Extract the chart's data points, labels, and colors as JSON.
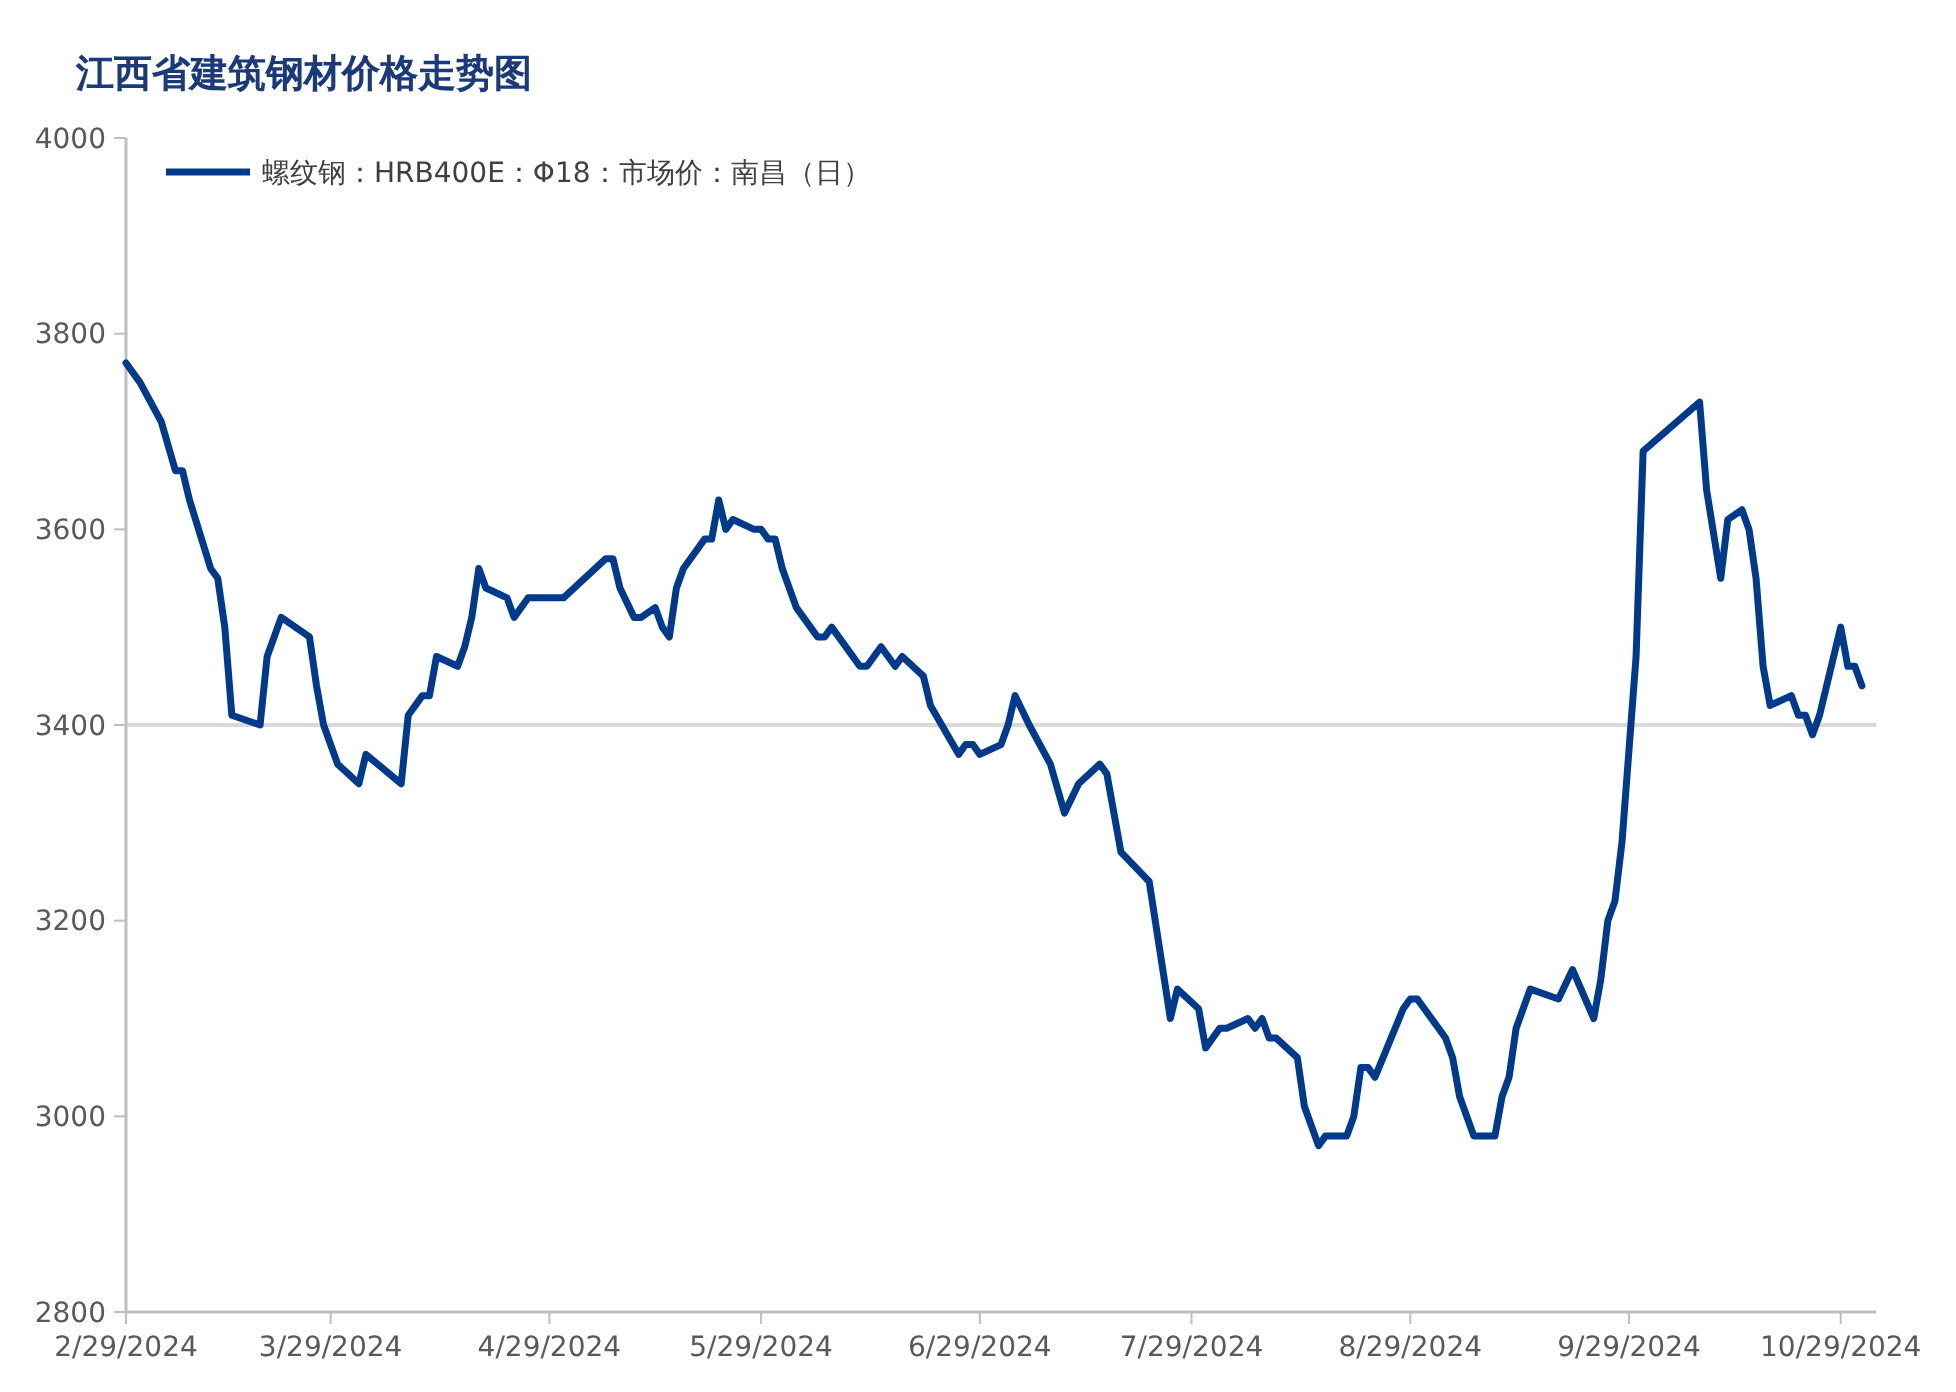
{
  "chart_data": {
    "type": "line",
    "title": "江西省建筑钢材价格走势图",
    "x": [
      "2024-02-29",
      "2024-03-02",
      "2024-03-05",
      "2024-03-07",
      "2024-03-08",
      "2024-03-09",
      "2024-03-12",
      "2024-03-13",
      "2024-03-14",
      "2024-03-15",
      "2024-03-19",
      "2024-03-20",
      "2024-03-22",
      "2024-03-26",
      "2024-03-27",
      "2024-03-28",
      "2024-03-30",
      "2024-04-02",
      "2024-04-03",
      "2024-04-08",
      "2024-04-09",
      "2024-04-11",
      "2024-04-12",
      "2024-04-13",
      "2024-04-16",
      "2024-04-17",
      "2024-04-18",
      "2024-04-19",
      "2024-04-20",
      "2024-04-23",
      "2024-04-24",
      "2024-04-26",
      "2024-05-01",
      "2024-05-07",
      "2024-05-08",
      "2024-05-09",
      "2024-05-11",
      "2024-05-12",
      "2024-05-14",
      "2024-05-15",
      "2024-05-16",
      "2024-05-17",
      "2024-05-18",
      "2024-05-21",
      "2024-05-22",
      "2024-05-23",
      "2024-05-24",
      "2024-05-25",
      "2024-05-28",
      "2024-05-29",
      "2024-05-30",
      "2024-05-31",
      "2024-06-01",
      "2024-06-03",
      "2024-06-05",
      "2024-06-06",
      "2024-06-07",
      "2024-06-08",
      "2024-06-12",
      "2024-06-13",
      "2024-06-15",
      "2024-06-17",
      "2024-06-18",
      "2024-06-21",
      "2024-06-22",
      "2024-06-26",
      "2024-06-27",
      "2024-06-28",
      "2024-06-29",
      "2024-07-02",
      "2024-07-03",
      "2024-07-04",
      "2024-07-06",
      "2024-07-09",
      "2024-07-11",
      "2024-07-13",
      "2024-07-16",
      "2024-07-17",
      "2024-07-19",
      "2024-07-23",
      "2024-07-26",
      "2024-07-27",
      "2024-07-30",
      "2024-07-31",
      "2024-08-02",
      "2024-08-03",
      "2024-08-06",
      "2024-08-07",
      "2024-08-08",
      "2024-08-09",
      "2024-08-10",
      "2024-08-13",
      "2024-08-14",
      "2024-08-16",
      "2024-08-17",
      "2024-08-20",
      "2024-08-21",
      "2024-08-22",
      "2024-08-23",
      "2024-08-24",
      "2024-08-28",
      "2024-08-29",
      "2024-08-30",
      "2024-09-03",
      "2024-09-04",
      "2024-09-05",
      "2024-09-07",
      "2024-09-10",
      "2024-09-11",
      "2024-09-12",
      "2024-09-13",
      "2024-09-15",
      "2024-09-19",
      "2024-09-21",
      "2024-09-24",
      "2024-09-25",
      "2024-09-26",
      "2024-09-27",
      "2024-09-28",
      "2024-09-30",
      "2024-10-01",
      "2024-10-09",
      "2024-10-10",
      "2024-10-12",
      "2024-10-13",
      "2024-10-15",
      "2024-10-16",
      "2024-10-17",
      "2024-10-18",
      "2024-10-19",
      "2024-10-22",
      "2024-10-23",
      "2024-10-24",
      "2024-10-25",
      "2024-10-26",
      "2024-10-29",
      "2024-10-30",
      "2024-10-31",
      "2024-11-01"
    ],
    "series": [
      {
        "name": "螺纹钢：HRB400E：Φ18：市场价：南昌（日）",
        "color": "#003a8c",
        "values": [
          3770,
          3750,
          3710,
          3660,
          3660,
          3630,
          3560,
          3550,
          3500,
          3410,
          3400,
          3470,
          3510,
          3490,
          3440,
          3400,
          3360,
          3340,
          3370,
          3340,
          3410,
          3430,
          3430,
          3470,
          3460,
          3480,
          3510,
          3560,
          3540,
          3530,
          3510,
          3530,
          3530,
          3570,
          3570,
          3540,
          3510,
          3510,
          3520,
          3500,
          3490,
          3540,
          3560,
          3590,
          3590,
          3630,
          3600,
          3610,
          3600,
          3600,
          3590,
          3590,
          3560,
          3520,
          3500,
          3490,
          3490,
          3500,
          3460,
          3460,
          3480,
          3460,
          3470,
          3450,
          3420,
          3370,
          3380,
          3380,
          3370,
          3380,
          3400,
          3430,
          3400,
          3360,
          3310,
          3340,
          3360,
          3350,
          3270,
          3240,
          3100,
          3130,
          3110,
          3070,
          3090,
          3090,
          3100,
          3090,
          3100,
          3080,
          3080,
          3060,
          3010,
          2970,
          2980,
          2980,
          3000,
          3050,
          3050,
          3040,
          3110,
          3120,
          3120,
          3080,
          3060,
          3020,
          2980,
          2980,
          3020,
          3040,
          3090,
          3130,
          3120,
          3150,
          3100,
          3140,
          3200,
          3220,
          3280,
          3470,
          3680,
          3730,
          3640,
          3550,
          3610,
          3620,
          3600,
          3550,
          3460,
          3420,
          3430,
          3410,
          3410,
          3390,
          3410,
          3500,
          3460,
          3460,
          3440
        ]
      }
    ],
    "xlim": [
      "2024-02-29",
      "2024-11-03"
    ],
    "xticks": [
      {
        "value": "2024-02-29",
        "label": "2/29/2024"
      },
      {
        "value": "2024-03-29",
        "label": "3/29/2024"
      },
      {
        "value": "2024-04-29",
        "label": "4/29/2024"
      },
      {
        "value": "2024-05-29",
        "label": "5/29/2024"
      },
      {
        "value": "2024-06-29",
        "label": "6/29/2024"
      },
      {
        "value": "2024-07-29",
        "label": "7/29/2024"
      },
      {
        "value": "2024-08-29",
        "label": "8/29/2024"
      },
      {
        "value": "2024-09-29",
        "label": "9/29/2024"
      },
      {
        "value": "2024-10-29",
        "label": "10/29/2024"
      }
    ],
    "ylim": [
      2800,
      4000
    ],
    "yticks": [
      2800,
      3000,
      3200,
      3400,
      3600,
      3800,
      4000
    ],
    "ref_lines": [
      {
        "axis": "y",
        "value": 3400,
        "color": "#d9d9d9"
      }
    ],
    "legend": "top left",
    "grid": false,
    "marker": "none",
    "line_style": "solid"
  }
}
